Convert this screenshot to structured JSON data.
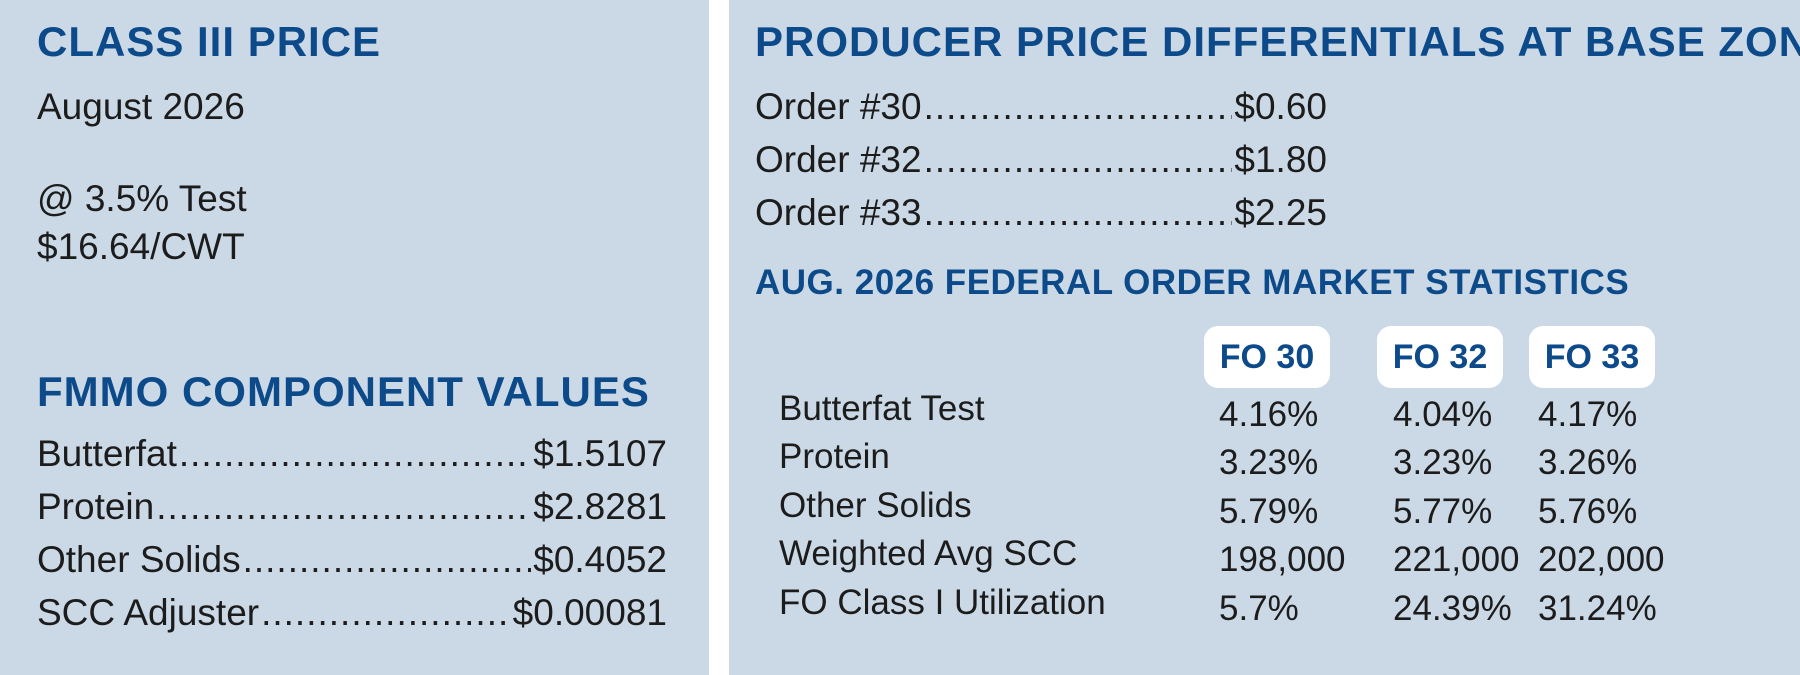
{
  "class_iii": {
    "heading": "CLASS III PRICE",
    "month": "August 2026",
    "test": "@ 3.5% Test",
    "price": "$16.64/CWT"
  },
  "fmmo": {
    "heading": "FMMO COMPONENT VALUES",
    "items": [
      {
        "label": "Butterfat",
        "value": " $1.5107"
      },
      {
        "label": "Protein",
        "value": "$2.8281"
      },
      {
        "label": "Other Solids",
        "value": "$0.4052"
      },
      {
        "label": "SCC Adjuster",
        "value": "$0.00081"
      }
    ]
  },
  "ppd": {
    "heading": "PRODUCER PRICE DIFFERENTIALS AT BASE ZONE",
    "items": [
      {
        "label": "Order #30",
        "value": "$0.60"
      },
      {
        "label": "Order #32",
        "value": "$1.80"
      },
      {
        "label": "Order #33",
        "value": "$2.25"
      }
    ]
  },
  "stats": {
    "heading": "AUG. 2026 FEDERAL ORDER MARKET STATISTICS",
    "columns": [
      "FO 30",
      "FO 32",
      "FO 33"
    ],
    "rows": [
      {
        "label": "Butterfat Test",
        "values": [
          "4.16%",
          "4.04%",
          "4.17%"
        ]
      },
      {
        "label": "Protein",
        "values": [
          "3.23%",
          "3.23%",
          "3.26%"
        ]
      },
      {
        "label": "Other Solids",
        "values": [
          "5.79%",
          "5.77%",
          "5.76%"
        ]
      },
      {
        "label": "Weighted Avg SCC",
        "values": [
          "198,000",
          "221,000",
          "202,000"
        ]
      },
      {
        "label": "FO Class I Utilization",
        "values": [
          "5.7%",
          "24.39%",
          "31.24%"
        ]
      }
    ]
  }
}
